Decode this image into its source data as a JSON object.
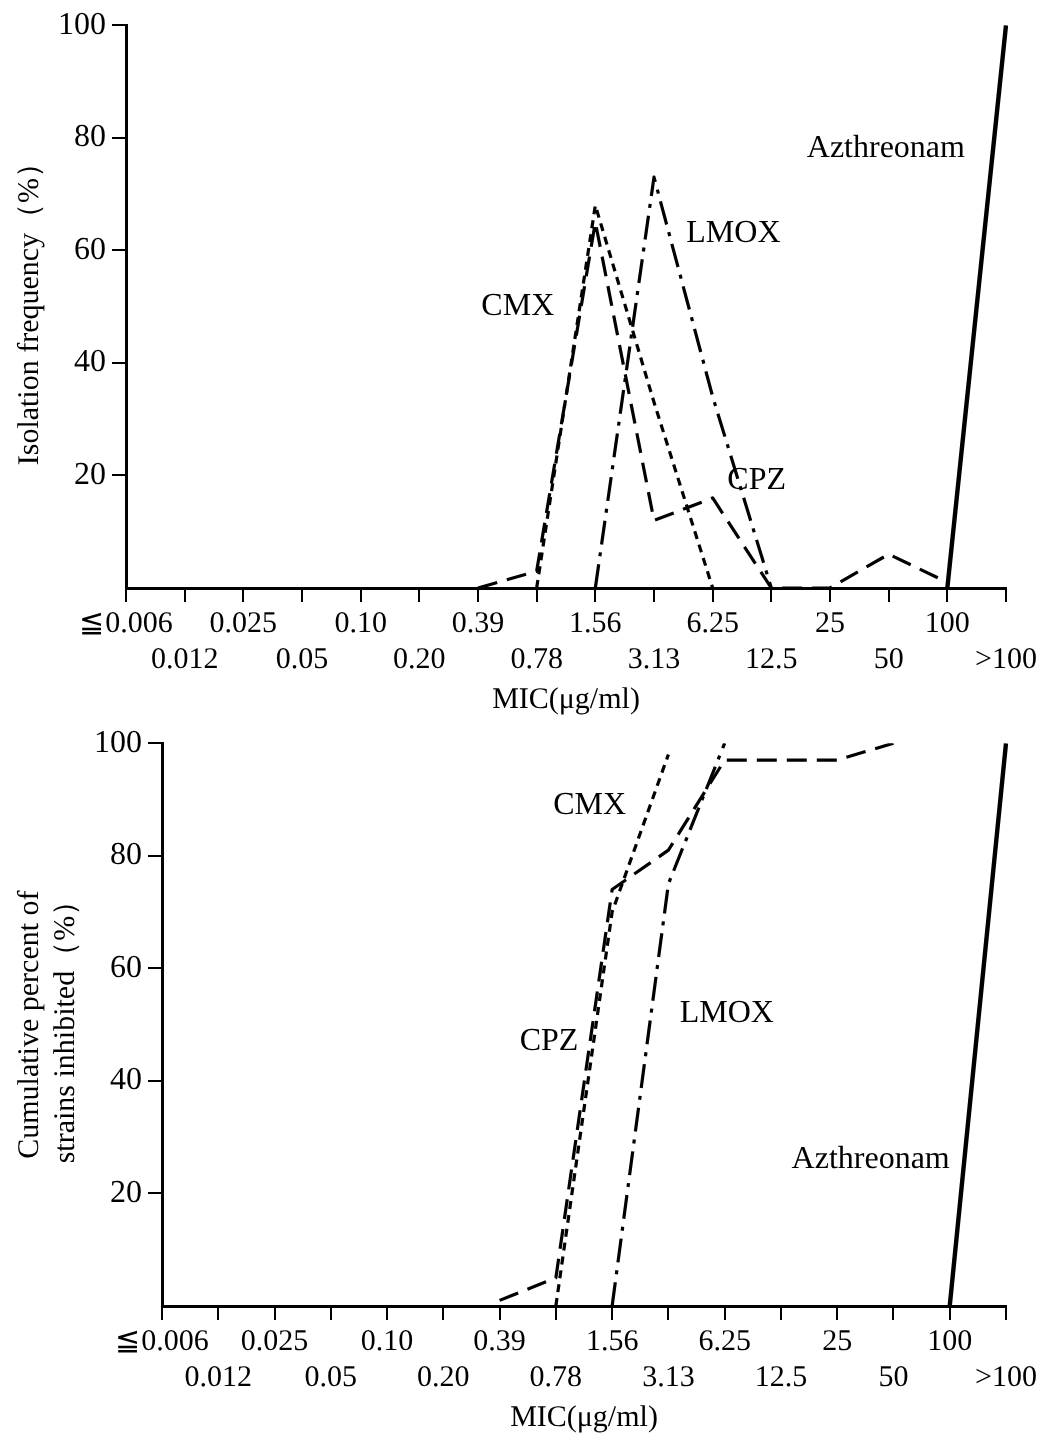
{
  "chart_data": [
    {
      "type": "line",
      "xlabel": "MIC(μg/ml)",
      "ylabel": "Isolation frequency（%）",
      "categories": [
        "≦0.006",
        "0.012",
        "0.025",
        "0.05",
        "0.10",
        "0.20",
        "0.39",
        "0.78",
        "1.56",
        "3.13",
        "6.25",
        "12.5",
        "25",
        "50",
        "100",
        ">100"
      ],
      "ylim": [
        0,
        100
      ],
      "yticks": [
        20,
        40,
        60,
        80,
        100
      ],
      "grid": false,
      "legend": false,
      "marker": "none",
      "series": [
        {
          "name": "CMX",
          "color": "#000000",
          "line_style": "dotted",
          "values": [
            null,
            null,
            null,
            null,
            null,
            null,
            null,
            0,
            68,
            33,
            0,
            null,
            null,
            null,
            null,
            null
          ]
        },
        {
          "name": "CPZ",
          "color": "#000000",
          "line_style": "dashed",
          "values": [
            null,
            null,
            null,
            null,
            null,
            null,
            0,
            3,
            65,
            12,
            16,
            0,
            0,
            6,
            1,
            null
          ]
        },
        {
          "name": "LMOX",
          "color": "#000000",
          "line_style": "dashdot",
          "values": [
            null,
            null,
            null,
            null,
            null,
            null,
            null,
            null,
            0,
            73,
            34,
            0,
            null,
            null,
            null,
            null
          ]
        },
        {
          "name": "Azthreonam",
          "color": "#000000",
          "line_style": "solid",
          "values": [
            null,
            null,
            null,
            null,
            null,
            null,
            null,
            null,
            null,
            null,
            null,
            null,
            null,
            null,
            0,
            100
          ]
        }
      ]
    },
    {
      "type": "line",
      "xlabel": "MIC(μg/ml)",
      "ylabel": "Cumulative percent of\nstrains inhibited（%）",
      "categories": [
        "≦0.006",
        "0.012",
        "0.025",
        "0.05",
        "0.10",
        "0.20",
        "0.39",
        "0.78",
        "1.56",
        "3.13",
        "6.25",
        "12.5",
        "25",
        "50",
        "100",
        ">100"
      ],
      "ylim": [
        0,
        100
      ],
      "yticks": [
        20,
        40,
        60,
        80,
        100
      ],
      "grid": false,
      "legend": false,
      "marker": "none",
      "series": [
        {
          "name": "CMX",
          "color": "#000000",
          "line_style": "dotted",
          "values": [
            null,
            null,
            null,
            null,
            null,
            null,
            null,
            0,
            70,
            98,
            null,
            null,
            null,
            null,
            null,
            null
          ]
        },
        {
          "name": "CPZ",
          "color": "#000000",
          "line_style": "dashed",
          "values": [
            null,
            null,
            null,
            null,
            null,
            null,
            1,
            5,
            74,
            81,
            97,
            97,
            97,
            100,
            null,
            null
          ]
        },
        {
          "name": "LMOX",
          "color": "#000000",
          "line_style": "dashdot",
          "values": [
            null,
            null,
            null,
            null,
            null,
            null,
            null,
            null,
            0,
            75,
            100,
            null,
            null,
            null,
            null,
            null
          ]
        },
        {
          "name": "Azthreonam",
          "color": "#000000",
          "line_style": "solid",
          "values": [
            null,
            null,
            null,
            null,
            null,
            null,
            null,
            null,
            null,
            null,
            null,
            null,
            null,
            null,
            0,
            100
          ]
        }
      ]
    }
  ]
}
